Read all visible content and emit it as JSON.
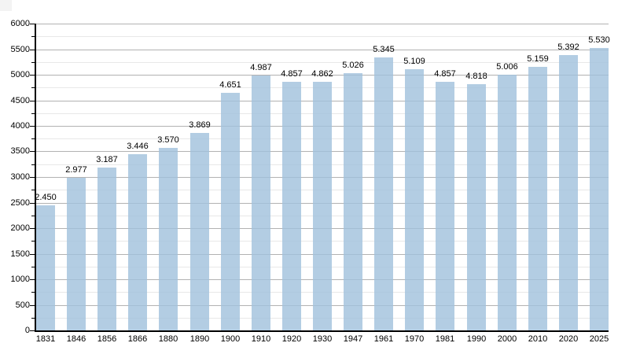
{
  "chart_data": {
    "type": "bar",
    "title": "",
    "xlabel": "",
    "ylabel": "",
    "categories": [
      "1831",
      "1846",
      "1856",
      "1866",
      "1880",
      "1890",
      "1900",
      "1910",
      "1920",
      "1930",
      "1947",
      "1961",
      "1970",
      "1981",
      "1990",
      "2000",
      "2010",
      "2020",
      "2025"
    ],
    "values": [
      2450,
      2977,
      3187,
      3446,
      3570,
      3869,
      4651,
      4987,
      4857,
      4862,
      5026,
      5345,
      5109,
      4857,
      4818,
      5006,
      5159,
      5392,
      5530
    ],
    "value_labels": [
      "2.450",
      "2.977",
      "3.187",
      "3.446",
      "3.570",
      "3.869",
      "4.651",
      "4.987",
      "4.857",
      "4.862",
      "5.026",
      "5.345",
      "5.109",
      "4.857",
      "4.818",
      "5.006",
      "5.159",
      "5.392",
      "5.530"
    ],
    "ylim": [
      0,
      6000
    ],
    "y_major_step": 500,
    "y_minor_step": 250,
    "y_tick_labels": [
      "0",
      "500",
      "1000",
      "1500",
      "2000",
      "2500",
      "3000",
      "3500",
      "4000",
      "4500",
      "5000",
      "5500",
      "6000"
    ],
    "grid": true,
    "legend_position": "none",
    "colors": {
      "bar_fill_rgba": "rgba(160,193,220,0.8)",
      "bar_fill_hex": "#b3cde3",
      "major_gridline": "#b2b2b2",
      "minor_gridline": "#e8e8e8",
      "axis": "#000000",
      "text": "#000000",
      "background": "#ffffff",
      "corner_artifact": "#f3f3f3"
    }
  }
}
